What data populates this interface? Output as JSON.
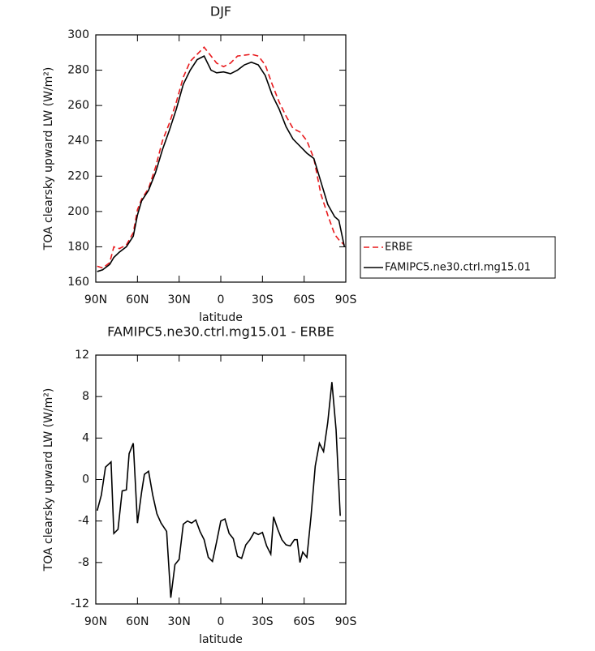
{
  "chart_data": [
    {
      "type": "line",
      "title": "DJF",
      "x_label": "latitude",
      "y_label": "TOA clearsky upward LW (W/m²)",
      "xlim": [
        90,
        -90
      ],
      "xticks": [
        {
          "value": 90,
          "label": "90N"
        },
        {
          "value": 60,
          "label": "60N"
        },
        {
          "value": 30,
          "label": "30N"
        },
        0,
        {
          "value": -30,
          "label": "30S"
        },
        {
          "value": -60,
          "label": "60S"
        },
        {
          "value": -90,
          "label": "90S"
        }
      ],
      "ylim": [
        160,
        300
      ],
      "yticks": [
        160,
        180,
        200,
        220,
        240,
        260,
        280,
        300
      ],
      "legend": "right",
      "x": [
        89,
        85,
        80,
        77,
        73,
        68,
        63,
        60,
        57,
        52,
        47,
        42,
        37,
        32,
        27,
        22,
        17,
        12,
        7,
        3,
        -2,
        -7,
        -12,
        -17,
        -22,
        -27,
        -32,
        -37,
        -42,
        -47,
        -52,
        -57,
        -62,
        -67,
        -72,
        -77,
        -82,
        -85,
        -89
      ],
      "series": [
        {
          "name": "ERBE",
          "color": "#e8191c",
          "style": "dashed",
          "values": [
            169,
            168,
            171,
            180,
            179,
            181,
            188,
            201,
            207,
            213,
            225,
            240,
            250,
            262,
            276,
            285,
            289,
            293,
            288,
            284,
            282,
            284,
            288,
            288.5,
            289,
            288,
            283,
            272,
            262,
            254,
            247,
            245,
            240,
            230,
            210,
            198,
            187,
            184,
            181
          ]
        },
        {
          "name": "FAMIPC5.ne30.ctrl.mg15.01",
          "color": "#000000",
          "style": "solid",
          "values": [
            166,
            167,
            170,
            174,
            177,
            180,
            186,
            198,
            206,
            212,
            222,
            235,
            246,
            258,
            272,
            280,
            286,
            288,
            280,
            278.5,
            279,
            278,
            280,
            283,
            284.5,
            283,
            277,
            266,
            258,
            248,
            241,
            237,
            233,
            230,
            217,
            204,
            197,
            195,
            180
          ]
        }
      ]
    },
    {
      "type": "line",
      "title": "FAMIPC5.ne30.ctrl.mg15.01 - ERBE",
      "x_label": "latitude",
      "y_label": "TOA clearsky upward LW (W/m²)",
      "xlim": [
        90,
        -90
      ],
      "xticks": [
        {
          "value": 90,
          "label": "90N"
        },
        {
          "value": 60,
          "label": "60N"
        },
        {
          "value": 30,
          "label": "30N"
        },
        0,
        {
          "value": -30,
          "label": "30S"
        },
        {
          "value": -60,
          "label": "60S"
        },
        {
          "value": -90,
          "label": "90S"
        }
      ],
      "ylim": [
        -12,
        12
      ],
      "yticks": [
        -12,
        -8,
        -4,
        0,
        4,
        8,
        12
      ],
      "x": [
        89,
        86,
        83,
        79,
        77,
        74,
        71,
        68,
        66,
        63,
        60,
        57,
        55,
        52,
        49,
        46,
        43,
        39,
        36,
        33,
        30,
        27,
        24,
        21,
        18,
        15,
        12,
        9,
        6,
        3,
        0,
        -3,
        -6,
        -9,
        -12,
        -15,
        -18,
        -21,
        -24,
        -27,
        -30,
        -33,
        -36,
        -38,
        -41,
        -44,
        -47,
        -50,
        -53,
        -55,
        -57,
        -59,
        -62,
        -65,
        -68,
        -71,
        -74,
        -77,
        -80,
        -83,
        -86
      ],
      "series": [
        {
          "color": "#000000",
          "style": "solid",
          "values": [
            -3,
            -1.5,
            1.2,
            1.7,
            -5.2,
            -4.8,
            -1.1,
            -1,
            2.5,
            3.5,
            -4.2,
            -1.2,
            0.5,
            0.8,
            -1.5,
            -3.3,
            -4.2,
            -5,
            -11.4,
            -8.2,
            -7.7,
            -4.3,
            -4,
            -4.2,
            -3.9,
            -5,
            -5.8,
            -7.5,
            -7.9,
            -6,
            -4,
            -3.8,
            -5.2,
            -5.7,
            -7.4,
            -7.6,
            -6.3,
            -5.8,
            -5.1,
            -5.3,
            -5.1,
            -6.4,
            -7.2,
            -3.6,
            -4.8,
            -5.8,
            -6.3,
            -6.4,
            -5.8,
            -5.8,
            -8,
            -7,
            -7.5,
            -3.5,
            1.3,
            3.5,
            2.7,
            5.5,
            9.4,
            4.8,
            -3.5
          ]
        }
      ]
    }
  ]
}
